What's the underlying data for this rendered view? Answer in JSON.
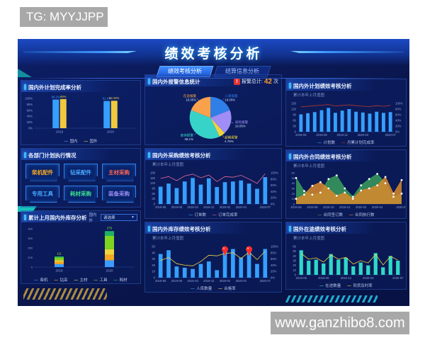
{
  "page": {
    "tg_badge": "TG: MYYJJPP",
    "watermark": "www.ganzhibo8.com"
  },
  "header": {
    "title": "绩效考核分析",
    "tabs": [
      {
        "label": "绩效考核分析",
        "active": true
      },
      {
        "label": "结算信息分析",
        "active": false
      }
    ]
  },
  "panels": {
    "plan_completion": {
      "title": "国内外计划完成率分析"
    },
    "dept_plan": {
      "title": "各部门计划执行情况",
      "buttons": [
        {
          "label": "柴机配件",
          "color": "#f5a623"
        },
        {
          "label": "钻采配件",
          "color": "#4aa8ff"
        },
        {
          "label": "主材采购",
          "color": "#ff6655"
        },
        {
          "label": "专用工具",
          "color": "#4aa8ff"
        },
        {
          "label": "耗材采购",
          "color": "#3fe08f"
        },
        {
          "label": "装备采购",
          "color": "#9b8ef5"
        }
      ]
    },
    "inventory_monthly": {
      "title": "累计上月国内外库存分析",
      "filter_label": "国内外",
      "filter_value": "请选择"
    },
    "alarm": {
      "title": "国内外报警信息统计",
      "total_label": "报警总计:",
      "total_value": "42",
      "total_unit": "次"
    },
    "purchase_kpi": {
      "title": "国内外采购绩效考核分析",
      "subtitle": "累计本年上月值图"
    },
    "inventory_kpi": {
      "title": "国内外库存绩效考核分析",
      "subtitle": "累计本年上月值图"
    },
    "plan_kpi": {
      "title": "国内外计划绩效考核分析",
      "subtitle": "累计本年上月值图"
    },
    "contract_kpi": {
      "title": "国内外合同绩效考核分析",
      "subtitle": "累计本年上月值图"
    },
    "transit_kpi": {
      "title": "国外在途绩效考核分析",
      "subtitle": "累计本年上月值图"
    }
  },
  "colors": {
    "accent": "#3db9ff",
    "bar_blue": "#35a0ff",
    "bar_yellow": "#f0c93c",
    "teal": "#2fd8c8",
    "alarm_red": "#e23333",
    "dashboard_bg": "#0a1750"
  },
  "chart_data": [
    {
      "id": "plan_completion_chart",
      "type": "bar",
      "categories": [
        "2019",
        "2020"
      ],
      "series": [
        {
          "name": "国内",
          "color": "#35a0ff",
          "values": [
            96.2,
            91.4
          ],
          "labels": [
            "96.2%",
            "91.4%"
          ]
        },
        {
          "name": "国外",
          "color": "#f0c93c",
          "values": [
            98,
            92.29
          ],
          "labels": [
            "98%",
            "92.29%"
          ]
        }
      ],
      "ylim": [
        0,
        100
      ],
      "yticks": [
        "0%",
        "20%",
        "40%",
        "60%",
        "80%",
        "100%"
      ],
      "legend": [
        {
          "label": "国内",
          "color": "#35a0ff"
        },
        {
          "label": "国外",
          "color": "#f0c93c"
        }
      ]
    },
    {
      "id": "alarm_pie",
      "type": "pie",
      "total": "42次",
      "slices": [
        {
          "name": "入库报警",
          "pct": 19.05,
          "color": "#2f7fe8"
        },
        {
          "name": "采购报警",
          "pct": 19.05,
          "color": "#a08df5"
        },
        {
          "name": "超期报警",
          "pct": 4.76,
          "color": "#f0d43c"
        },
        {
          "name": "库存报警",
          "pct": 38.1,
          "color": "#38d3c8"
        },
        {
          "name": "在途报警",
          "pct": 19.05,
          "color": "#f9a14c"
        }
      ]
    },
    {
      "id": "inventory_monthly_chart",
      "type": "stacked_bar",
      "categories": [
        "2019",
        "2020"
      ],
      "totals": [
        "111",
        "376"
      ],
      "series": [
        {
          "name": "柴机",
          "color": "#3b9bff",
          "values": [
            30,
            70
          ]
        },
        {
          "name": "钻采",
          "color": "#f5a623",
          "values": [
            25,
            60
          ]
        },
        {
          "name": "主材",
          "color": "#f0d43c",
          "values": [
            16,
            56
          ]
        },
        {
          "name": "工具",
          "color": "#7ed321",
          "values": [
            30,
            140
          ]
        },
        {
          "name": "耗材",
          "color": "#1fb264",
          "values": [
            10,
            50
          ]
        }
      ],
      "ylim": [
        0,
        400
      ],
      "yticks": [
        0,
        100,
        200,
        300,
        400
      ],
      "legend": [
        {
          "label": "柴机",
          "color": "#3b9bff"
        },
        {
          "label": "钻采",
          "color": "#f5a623"
        },
        {
          "label": "主材",
          "color": "#f0d43c"
        },
        {
          "label": "工具",
          "color": "#7ed321"
        },
        {
          "label": "耗材",
          "color": "#1fb264"
        }
      ]
    },
    {
      "id": "purchase_kpi_chart",
      "type": "bar_line",
      "x": [
        "2019-06",
        "2019-07",
        "2019-08",
        "2019-09",
        "2019-10",
        "2019-11",
        "2019-12",
        "2020-01",
        "2020-02",
        "2020-03",
        "2020-04",
        "2020-05",
        "2020-06",
        "2020-07"
      ],
      "bars": [
        100,
        118,
        92,
        130,
        150,
        112,
        148,
        98,
        126,
        130,
        136,
        118,
        88,
        155
      ],
      "line": [
        82,
        88,
        75,
        90,
        96,
        84,
        93,
        72,
        88,
        86,
        92,
        80,
        66,
        97
      ],
      "bar_color": "#35a0ff",
      "line_color": "#e86a9a",
      "ylim": [
        0,
        180
      ],
      "yticks": [
        0,
        30,
        60,
        90,
        120,
        150,
        180
      ],
      "yticks_right": [
        "0%",
        "20%",
        "40%",
        "60%",
        "80%",
        "100%"
      ],
      "xshow": [
        0,
        2,
        4,
        6,
        8,
        10,
        13
      ],
      "legend": [
        {
          "label": "订单数",
          "color": "#35a0ff"
        },
        {
          "label": "订单完成率",
          "color": "#e86a9a"
        }
      ]
    },
    {
      "id": "inventory_kpi_chart",
      "type": "bar_line",
      "x": [
        "2019-06",
        "2019-07",
        "2019-08",
        "2019-09",
        "2019-10",
        "2019-11",
        "2019-12",
        "2020-01",
        "2020-02",
        "2020-03",
        "2020-04",
        "2020-05",
        "2020-06",
        "2020-07"
      ],
      "bars": [
        38,
        44,
        18,
        16,
        14,
        22,
        26,
        12,
        42,
        46,
        32,
        44,
        22,
        46
      ],
      "line": [
        55,
        65,
        45,
        40,
        38,
        52,
        72,
        70,
        78,
        80,
        62,
        82,
        58,
        85
      ],
      "bar_color": "#35a0ff",
      "line_color": "#f0d43c",
      "markers": [
        8,
        11
      ],
      "marker_color": "#ff2b2b",
      "ylim": [
        0,
        50
      ],
      "yticks": [
        0,
        10,
        20,
        30,
        40,
        50
      ],
      "yticks_right": [
        "0%",
        "20%",
        "40%",
        "60%",
        "80%",
        "100%"
      ],
      "xshow": [
        0,
        2,
        4,
        6,
        8,
        10,
        13
      ],
      "legend": [
        {
          "label": "入库数量",
          "color": "#35a0ff"
        },
        {
          "label": "合格率",
          "color": "#f0d43c"
        }
      ]
    },
    {
      "id": "plan_kpi_chart",
      "type": "bar_line",
      "x": [
        "2019-06",
        "2019-07",
        "2019-08",
        "2019-09",
        "2019-10",
        "2019-11",
        "2019-12",
        "2020-01",
        "2020-02",
        "2020-03",
        "2020-04",
        "2020-05",
        "2020-06",
        "2020-07"
      ],
      "bars": [
        92,
        98,
        104,
        114,
        126,
        100,
        112,
        120,
        106,
        102,
        96,
        106,
        100,
        104
      ],
      "line": [
        88,
        90,
        92,
        94,
        96,
        91,
        93,
        95,
        92,
        90,
        89,
        92,
        90,
        93
      ],
      "bar_color": "#35a0ff",
      "line_color": "#c0392b",
      "ylim": [
        0,
        150
      ],
      "yticks": [
        0,
        30,
        60,
        90,
        120,
        150
      ],
      "yticks_right": [
        "0%",
        "20%",
        "40%",
        "60%",
        "80%",
        "100%"
      ],
      "xshow": [
        0,
        3,
        6,
        9,
        13
      ],
      "legend": [
        {
          "label": "计划数",
          "color": "#35a0ff"
        },
        {
          "label": "月累计划完成率",
          "color": "#c0392b"
        }
      ]
    },
    {
      "id": "contract_kpi_chart",
      "type": "area",
      "x": [
        "2019-06",
        "2019-07",
        "2019-08",
        "2019-09",
        "2019-10",
        "2019-11",
        "2019-12",
        "2020-01",
        "2020-02",
        "2020-03",
        "2020-04",
        "2020-05",
        "2020-06",
        "2020-07"
      ],
      "series": [
        {
          "name": "合同签订数",
          "color": "#3a9d5c",
          "values": [
            50,
            25,
            18,
            22,
            48,
            55,
            30,
            14,
            36,
            48,
            58,
            40,
            14,
            20
          ]
        },
        {
          "name": "合同执行数",
          "color": "#d98a2b",
          "values": [
            10,
            18,
            35,
            42,
            30,
            16,
            22,
            10,
            26,
            30,
            36,
            52,
            20,
            46
          ]
        }
      ],
      "ylim": [
        0,
        60
      ],
      "yticks": [
        0,
        10,
        20,
        30,
        40,
        50,
        60
      ],
      "xshow": [
        0,
        2,
        4,
        6,
        8,
        10,
        13
      ],
      "legend": [
        {
          "label": "合同签订数",
          "color": "#3a9d5c"
        },
        {
          "label": "合同执行数",
          "color": "#d98a2b"
        }
      ]
    },
    {
      "id": "transit_kpi_chart",
      "type": "bar_line",
      "x": [
        "2019-06",
        "2019-07",
        "2019-08",
        "2019-09",
        "2019-10",
        "2019-11",
        "2019-12",
        "2020-01",
        "2020-02",
        "2020-03",
        "2020-04",
        "2020-05",
        "2020-06",
        "2020-07"
      ],
      "bars": [
        52,
        30,
        32,
        24,
        44,
        32,
        36,
        18,
        26,
        20,
        46,
        16,
        40,
        30
      ],
      "line": [
        75,
        55,
        60,
        45,
        70,
        55,
        62,
        38,
        50,
        42,
        72,
        35,
        65,
        52
      ],
      "bar_color": "#2fd8c8",
      "line_color": "#f0d43c",
      "ylim": [
        0,
        60
      ],
      "yticks": [
        0,
        10,
        20,
        30,
        40,
        50,
        60
      ],
      "xshow": [
        0,
        3,
        6,
        9,
        13
      ],
      "legend": [
        {
          "label": "在途数量",
          "color": "#2fd8c8"
        },
        {
          "label": "到货及时率",
          "color": "#f0d43c"
        }
      ]
    }
  ]
}
